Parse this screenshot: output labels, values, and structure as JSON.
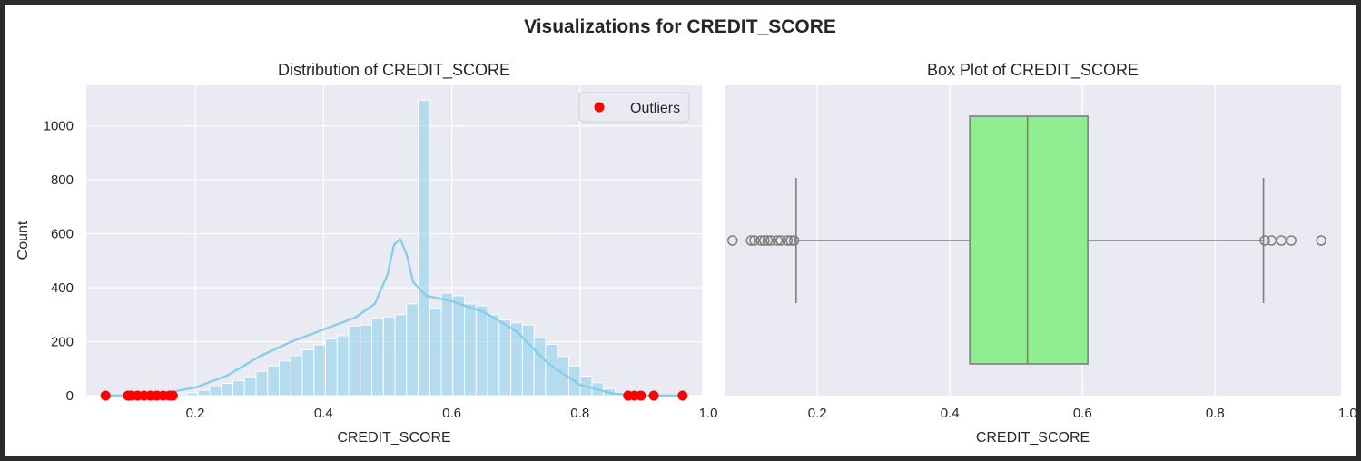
{
  "figure": {
    "suptitle": "Visualizations for CREDIT_SCORE",
    "background": "#ffffff",
    "window_background": "#2b2b2b"
  },
  "style": {
    "plot_background": "#eaeaf2",
    "grid_color": "#ffffff",
    "text_color": "#262626"
  },
  "chart_data": [
    {
      "type": "bar",
      "subtype": "histogram-with-kde",
      "title": "Distribution of CREDIT_SCORE",
      "xlabel": "CREDIT_SCORE",
      "ylabel": "Count",
      "xlim": [
        0.03,
        0.99
      ],
      "ylim": [
        0,
        1150
      ],
      "xticks": [
        0.2,
        0.4,
        0.6,
        0.8,
        1.0
      ],
      "xtick_labels": [
        "0.2",
        "0.4",
        "0.6",
        "0.8",
        "1.0"
      ],
      "yticks": [
        0,
        200,
        400,
        600,
        800,
        1000
      ],
      "ytick_labels": [
        "0",
        "200",
        "400",
        "600",
        "800",
        "1000"
      ],
      "grid": true,
      "bar_color": "#87ceeb",
      "kde_color": "#87ceeb",
      "bins": {
        "start": 0.06,
        "width": 0.01806,
        "counts": [
          1,
          1,
          1,
          2,
          3,
          3,
          6,
          10,
          20,
          32,
          45,
          56,
          70,
          90,
          110,
          128,
          148,
          170,
          188,
          210,
          222,
          258,
          262,
          287,
          292,
          300,
          340,
          1095,
          325,
          380,
          370,
          340,
          333,
          300,
          280,
          270,
          262,
          215,
          190,
          145,
          110,
          72,
          48,
          25,
          12,
          8,
          5,
          3,
          2,
          2
        ]
      },
      "kde": {
        "x": [
          0.06,
          0.1,
          0.15,
          0.2,
          0.25,
          0.3,
          0.35,
          0.4,
          0.45,
          0.48,
          0.5,
          0.51,
          0.52,
          0.53,
          0.54,
          0.56,
          0.6,
          0.65,
          0.7,
          0.75,
          0.8,
          0.85,
          0.9,
          0.96
        ],
        "y": [
          0,
          1,
          8,
          30,
          75,
          145,
          200,
          245,
          290,
          340,
          450,
          560,
          580,
          520,
          420,
          370,
          350,
          310,
          240,
          120,
          40,
          8,
          1,
          0
        ]
      },
      "outliers": {
        "name": "Outliers",
        "color": "#ff0000",
        "x": [
          0.06,
          0.095,
          0.1,
          0.11,
          0.12,
          0.13,
          0.14,
          0.15,
          0.16,
          0.165,
          0.875,
          0.885,
          0.895,
          0.915,
          0.96
        ],
        "y": [
          0,
          0,
          0,
          0,
          0,
          0,
          0,
          0,
          0,
          0,
          0,
          0,
          0,
          0,
          0
        ]
      },
      "legend": {
        "position": "top-right",
        "entries": [
          "Outliers"
        ]
      }
    },
    {
      "type": "box",
      "title": "Box Plot of CREDIT_SCORE",
      "xlabel": "CREDIT_SCORE",
      "xlim": [
        0.06,
        0.99
      ],
      "xticks": [
        0.2,
        0.4,
        0.6,
        0.8,
        1.0
      ],
      "xtick_labels": [
        "0.2",
        "0.4",
        "0.6",
        "0.8",
        "1.0"
      ],
      "grid": true,
      "box_color": "#90ee90",
      "line_color": "#7f7f7f",
      "whisker_low": 0.168,
      "q1": 0.43,
      "median": 0.517,
      "q3": 0.608,
      "whisker_high": 0.873,
      "fliers": [
        0.072,
        0.1,
        0.105,
        0.115,
        0.12,
        0.125,
        0.13,
        0.14,
        0.145,
        0.155,
        0.16,
        0.165,
        0.875,
        0.885,
        0.9,
        0.915,
        0.96
      ]
    }
  ]
}
